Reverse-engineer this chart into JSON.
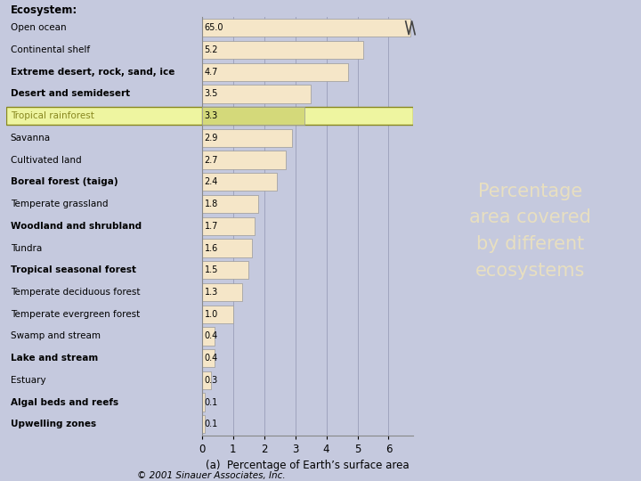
{
  "title": "Percentage area covered by different ecosystems",
  "ecosystems": [
    "Open ocean",
    "Continental shelf",
    "Extreme desert, rock, sand, ice",
    "Desert and semidesert",
    "Tropical rainforest",
    "Savanna",
    "Cultivated land",
    "Boreal forest (taiga)",
    "Temperate grassland",
    "Woodland and shrubland",
    "Tundra",
    "Tropical seasonal forest",
    "Temperate deciduous forest",
    "Temperate evergreen forest",
    "Swamp and stream",
    "Lake and stream",
    "Estuary",
    "Algal beds and reefs",
    "Upwelling zones"
  ],
  "values": [
    65.0,
    5.2,
    4.7,
    3.5,
    3.3,
    2.9,
    2.7,
    2.4,
    1.8,
    1.7,
    1.6,
    1.5,
    1.3,
    1.0,
    0.4,
    0.4,
    0.3,
    0.1,
    0.1
  ],
  "bold_labels": [
    2,
    3,
    7,
    9,
    11,
    15,
    17,
    18
  ],
  "highlighted_index": 4,
  "bar_color": "#f5e6c8",
  "highlight_bar_color": "#d4d97a",
  "highlight_bg_color": "#eef5a0",
  "highlight_border_color": "#888820",
  "bar_edge_color": "#999999",
  "axis_bg_color": "#c5c9de",
  "fig_bg_color": "#c5c9de",
  "xlabel": "(a)  Percentage of Earth’s surface area",
  "footer": "© 2001 Sinauer Associates, Inc.",
  "xlim": [
    0,
    6.8
  ],
  "xticks": [
    0,
    1,
    2,
    3,
    4,
    5,
    6
  ],
  "right_bg_color": "#3d6b42",
  "right_text": "Percentage\narea covered\nby different\necosystems",
  "right_text_color": "#e8dfc0",
  "gridline_color": "#9fa3be",
  "bar_display_max": 6.7
}
